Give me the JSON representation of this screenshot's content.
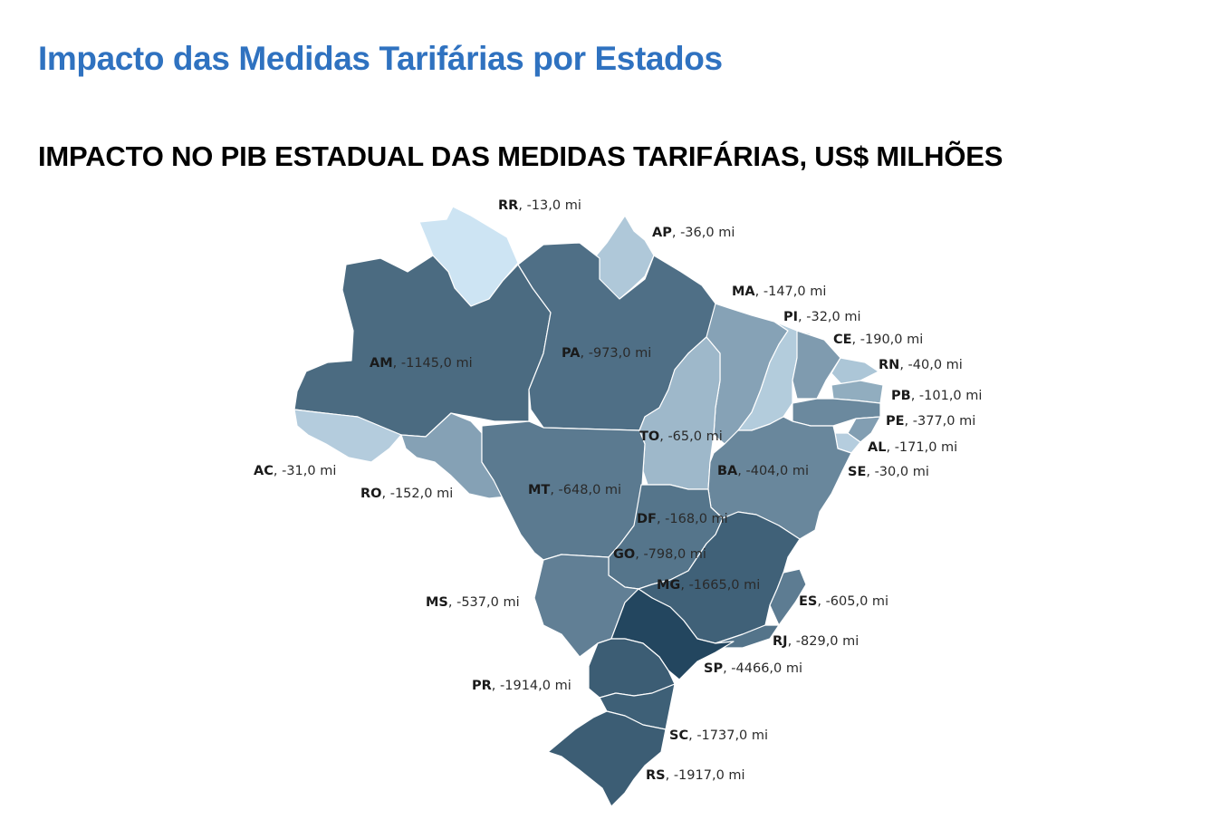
{
  "header": {
    "title": "Impacto das Medidas Tarifárias por Estados"
  },
  "chart_title": "IMPACTO NO PIB ESTADUAL DAS MEDIDAS TARIFÁRIAS, US$ MILHÕES",
  "map_data": {
    "type": "choropleth",
    "region": "Brasil",
    "unit_suffix": "mi",
    "color_scale": [
      "#cde4f3",
      "#23465f"
    ],
    "states": [
      {
        "abbr": "RR",
        "value_label": "-13,0 mi",
        "value": -13.0
      },
      {
        "abbr": "AP",
        "value_label": "-36,0 mi",
        "value": -36.0
      },
      {
        "abbr": "MA",
        "value_label": "-147,0 mi",
        "value": -147.0
      },
      {
        "abbr": "PI",
        "value_label": "-32,0 mi",
        "value": -32.0
      },
      {
        "abbr": "CE",
        "value_label": "-190,0 mi",
        "value": -190.0
      },
      {
        "abbr": "RN",
        "value_label": "-40,0 mi",
        "value": -40.0
      },
      {
        "abbr": "PB",
        "value_label": "-101,0 mi",
        "value": -101.0
      },
      {
        "abbr": "PE",
        "value_label": "-377,0 mi",
        "value": -377.0
      },
      {
        "abbr": "AL",
        "value_label": "-171,0 mi",
        "value": -171.0
      },
      {
        "abbr": "SE",
        "value_label": "-30,0 mi",
        "value": -30.0
      },
      {
        "abbr": "AM",
        "value_label": "-1145,0 mi",
        "value": -1145.0
      },
      {
        "abbr": "PA",
        "value_label": "-973,0 mi",
        "value": -973.0
      },
      {
        "abbr": "TO",
        "value_label": "-65,0 mi",
        "value": -65.0
      },
      {
        "abbr": "AC",
        "value_label": "-31,0 mi",
        "value": -31.0
      },
      {
        "abbr": "RO",
        "value_label": "-152,0 mi",
        "value": -152.0
      },
      {
        "abbr": "MT",
        "value_label": "-648,0 mi",
        "value": -648.0
      },
      {
        "abbr": "BA",
        "value_label": "-404,0 mi",
        "value": -404.0
      },
      {
        "abbr": "DF",
        "value_label": "-168,0 mi",
        "value": -168.0
      },
      {
        "abbr": "GO",
        "value_label": "-798,0 mi",
        "value": -798.0
      },
      {
        "abbr": "MG",
        "value_label": "-1665,0 mi",
        "value": -1665.0
      },
      {
        "abbr": "ES",
        "value_label": "-605,0 mi",
        "value": -605.0
      },
      {
        "abbr": "MS",
        "value_label": "-537,0 mi",
        "value": -537.0
      },
      {
        "abbr": "RJ",
        "value_label": "-829,0 mi",
        "value": -829.0
      },
      {
        "abbr": "SP",
        "value_label": "-4466,0 mi",
        "value": -4466.0
      },
      {
        "abbr": "PR",
        "value_label": "-1914,0 mi",
        "value": -1914.0
      },
      {
        "abbr": "SC",
        "value_label": "-1737,0 mi",
        "value": -1737.0
      },
      {
        "abbr": "RS",
        "value_label": "-1917,0 mi",
        "value": -1917.0
      }
    ]
  }
}
